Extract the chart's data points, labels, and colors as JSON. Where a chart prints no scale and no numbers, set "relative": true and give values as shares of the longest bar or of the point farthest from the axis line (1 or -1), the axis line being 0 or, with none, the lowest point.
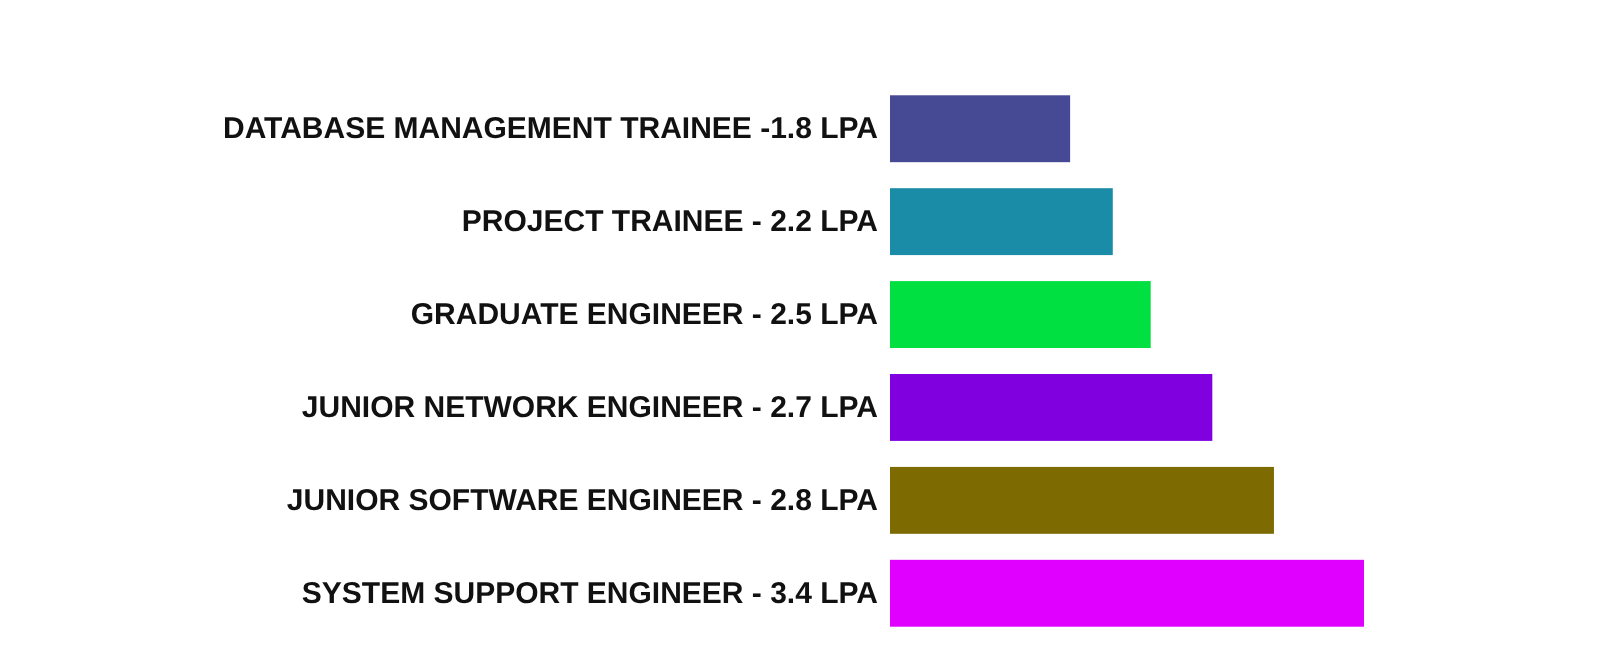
{
  "chart_data": {
    "type": "bar",
    "orientation": "horizontal",
    "relative": true,
    "categories": [
      "DATABASE MANAGEMENT TRAINEE -1.8 LPA",
      "PROJECT TRAINEE - 2.2 LPA",
      "GRADUATE ENGINEER - 2.5 LPA",
      "JUNIOR NETWORK ENGINEER - 2.7 LPA",
      "JUNIOR SOFTWARE ENGINEER - 2.8 LPA",
      "SYSTEM SUPPORT ENGINEER - 3.4 LPA"
    ],
    "values": [
      0.38,
      0.47,
      0.55,
      0.68,
      0.81,
      1
    ],
    "colors": [
      "#464a94",
      "#1a8ca8",
      "#00e040",
      "#8000e0",
      "#7d6a00",
      "#e000ff"
    ]
  }
}
